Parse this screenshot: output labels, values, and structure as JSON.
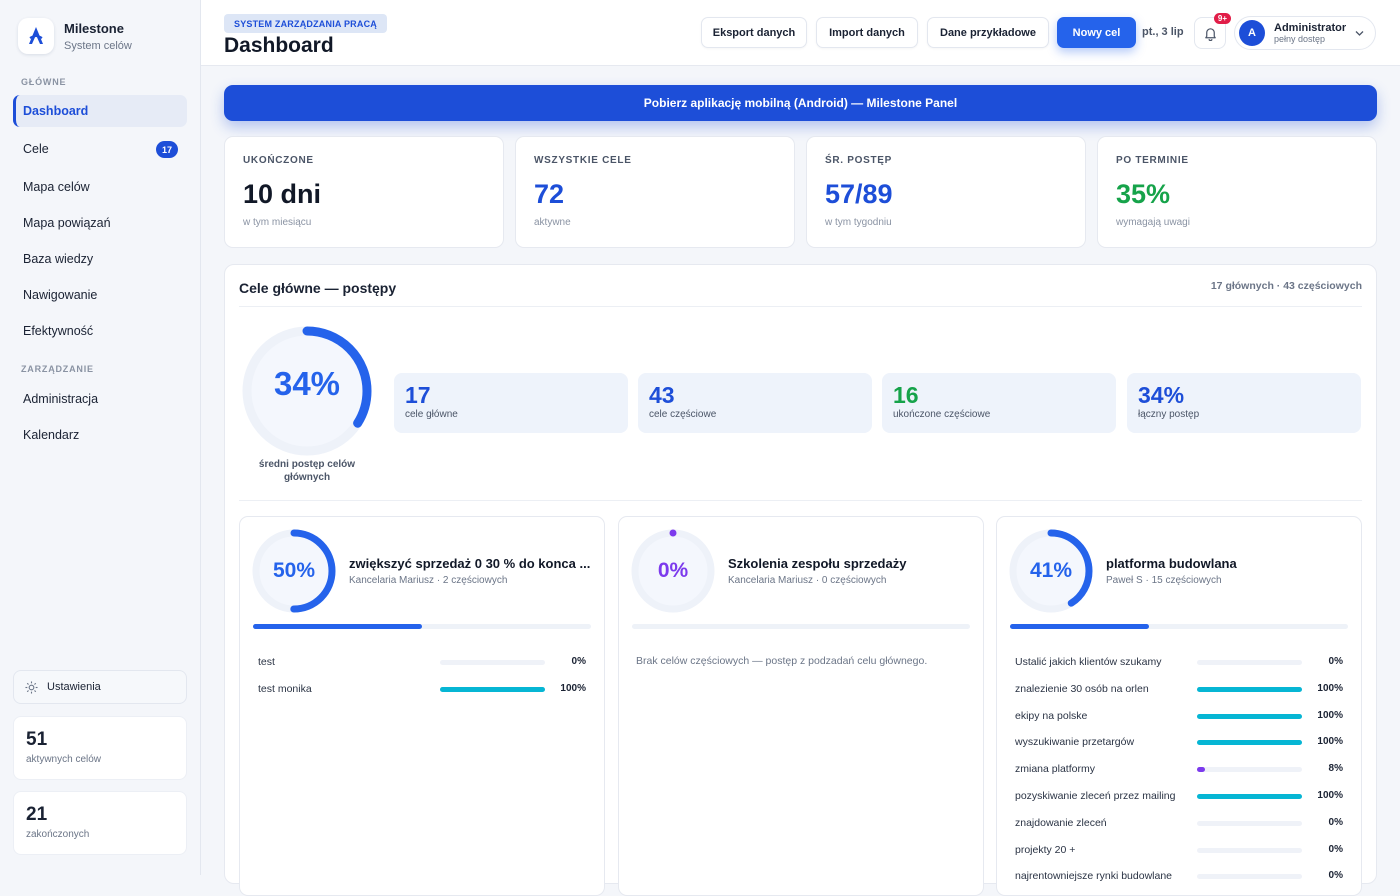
{
  "brand": {
    "title": "Milestone",
    "subtitle": "System celów"
  },
  "nav": {
    "section_main": "GŁÓWNE",
    "section_manage": "ZARZĄDZANIE",
    "items": [
      {
        "label": "Dashboard",
        "active": true
      },
      {
        "label": "Cele",
        "badge": "17"
      },
      {
        "label": "Mapa celów"
      },
      {
        "label": "Mapa powiązań"
      },
      {
        "label": "Baza wiedzy"
      },
      {
        "label": "Nawigowanie"
      },
      {
        "label": "Efektywność"
      }
    ],
    "manage_items": [
      {
        "label": "Administracja"
      },
      {
        "label": "Kalendarz"
      }
    ],
    "settings": "Ustawienia",
    "mini": [
      {
        "value": "51",
        "label": "aktywnych celów"
      },
      {
        "value": "21",
        "label": "zakończonych"
      }
    ]
  },
  "header": {
    "crumb": "SYSTEM ZARZĄDZANIA PRACĄ",
    "title": "Dashboard",
    "buttons": [
      "Eksport danych",
      "Import danych",
      "Dane przykładowe",
      "Nowy cel"
    ],
    "date": "pt., 3 lip",
    "notif_badge": "9+",
    "user": {
      "initial": "A",
      "name": "Administrator",
      "role": "pełny dostęp"
    }
  },
  "banner": "Pobierz aplikację mobilną (Android) — Milestone Panel",
  "stats": [
    {
      "label": "UKOŃCZONE",
      "value": "10 dni",
      "sub": "w tym miesiącu",
      "color": "#111827"
    },
    {
      "label": "WSZYSTKIE CELE",
      "value": "72",
      "sub": "aktywne",
      "color": "#1d4ed8"
    },
    {
      "label": "ŚR. POSTĘP",
      "value": "57/89",
      "sub": "w tym tygodniu",
      "color": "#1d4ed8"
    },
    {
      "label": "PO TERMINIE",
      "value": "35%",
      "sub": "wymagają uwagi",
      "color": "#16a34a"
    }
  ],
  "goals": {
    "title": "Cele główne — postępy",
    "meta": "17 głównych · 43 częściowych",
    "avg_pct": "34%",
    "avg_fraction": 0.34,
    "avg_label": "średni postęp celów głównych",
    "chips": [
      {
        "value": "17",
        "label": "cele główne",
        "color": "#1d4ed8"
      },
      {
        "value": "43",
        "label": "cele częściowe",
        "color": "#1d4ed8"
      },
      {
        "value": "16",
        "label": "ukończone częściowe",
        "color": "#16a34a"
      },
      {
        "value": "34%",
        "label": "łączny postęp",
        "color": "#1d4ed8"
      }
    ],
    "cards": [
      {
        "pct": "50%",
        "fraction": 0.5,
        "color": "#2563eb",
        "title": "zwiększyć sprzedaż 0 30 % do konca ...",
        "sub": "Kancelaria Mariusz · 2 częściowych",
        "subgoals": [
          {
            "name": "test",
            "pct": "0%",
            "fraction": 0
          },
          {
            "name": "test monika",
            "pct": "100%",
            "fraction": 1
          }
        ]
      },
      {
        "pct": "0%",
        "fraction": 0,
        "color": "#7c3aed",
        "title": "Szkolenia zespołu sprzedaży",
        "sub": "Kancelaria Mariusz · 0 częściowych",
        "empty": "Brak celów częściowych — postęp z podzadań celu głównego.",
        "subgoals": []
      },
      {
        "pct": "41%",
        "fraction": 0.41,
        "color": "#2563eb",
        "title": "platforma budowlana",
        "sub": "Paweł S · 15 częściowych",
        "subgoals": [
          {
            "name": "Ustalić jakich klientów szukamy",
            "pct": "0%",
            "fraction": 0
          },
          {
            "name": "znalezienie 30 osób na orlen",
            "pct": "100%",
            "fraction": 1
          },
          {
            "name": "ekipy na polske",
            "pct": "100%",
            "fraction": 1
          },
          {
            "name": "wyszukiwanie przetargów",
            "pct": "100%",
            "fraction": 1
          },
          {
            "name": "zmiana platformy",
            "pct": "8%",
            "fraction": 0.08
          },
          {
            "name": "pozyskiwanie zleceń przez mailing",
            "pct": "100%",
            "fraction": 1
          },
          {
            "name": "znajdowanie zleceń",
            "pct": "0%",
            "fraction": 0
          },
          {
            "name": "projekty 20 +",
            "pct": "0%",
            "fraction": 0
          },
          {
            "name": "najrentowniejsze rynki budowlane",
            "pct": "0%",
            "fraction": 0
          }
        ]
      }
    ]
  }
}
